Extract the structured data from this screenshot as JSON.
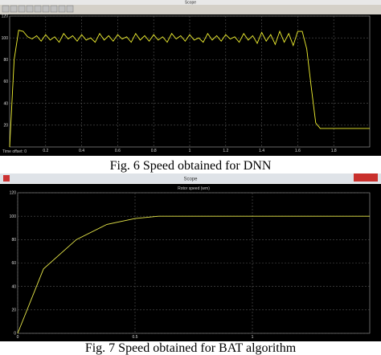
{
  "windows": [
    {
      "title": "Scope",
      "time_offset": "Time offset: 0",
      "caption": "Fig. 6 Speed obtained for DNN"
    },
    {
      "title": "Scope",
      "caption": "Fig. 7 Speed obtained for BAT algorithm"
    }
  ],
  "chart_data": [
    {
      "type": "line",
      "color": "#f2f230",
      "x": [
        0,
        0.025,
        0.05,
        0.075,
        0.1,
        0.125,
        0.15,
        0.175,
        0.2,
        0.225,
        0.25,
        0.275,
        0.3,
        0.325,
        0.35,
        0.375,
        0.4,
        0.425,
        0.45,
        0.475,
        0.5,
        0.525,
        0.55,
        0.575,
        0.6,
        0.625,
        0.65,
        0.675,
        0.7,
        0.725,
        0.75,
        0.775,
        0.8,
        0.825,
        0.85,
        0.875,
        0.9,
        0.925,
        0.95,
        0.975,
        1,
        1.025,
        1.05,
        1.075,
        1.1,
        1.125,
        1.15,
        1.175,
        1.2,
        1.225,
        1.25,
        1.275,
        1.3,
        1.325,
        1.35,
        1.375,
        1.4,
        1.425,
        1.45,
        1.475,
        1.5,
        1.525,
        1.55,
        1.575,
        1.6,
        1.625,
        1.65,
        1.675,
        1.7,
        1.725,
        1.75,
        1.775,
        1.8,
        1.825,
        1.85,
        1.875,
        1.9,
        1.925,
        1.95,
        1.975,
        2
      ],
      "values": [
        0,
        80,
        107,
        106,
        101,
        99,
        102,
        97,
        103,
        98,
        101,
        96,
        104,
        99,
        102,
        97,
        103,
        98,
        100,
        96,
        104,
        98,
        102,
        97,
        103,
        99,
        101,
        96,
        104,
        98,
        102,
        97,
        103,
        98,
        101,
        96,
        104,
        99,
        102,
        97,
        103,
        98,
        100,
        96,
        104,
        98,
        102,
        97,
        103,
        99,
        101,
        96,
        104,
        98,
        102,
        95,
        105,
        97,
        103,
        94,
        106,
        96,
        104,
        93,
        106,
        106,
        90,
        55,
        22,
        17,
        17,
        17,
        17,
        17,
        17,
        17,
        17,
        17,
        17,
        17,
        17
      ],
      "xlim": [
        0,
        2
      ],
      "xticks": [
        0.2,
        0.4,
        0.6,
        0.8,
        1,
        1.2,
        1.4,
        1.6,
        1.8
      ],
      "ylim": [
        0,
        120
      ],
      "yticks": [
        20,
        40,
        60,
        80,
        100,
        120
      ],
      "grid": true
    },
    {
      "type": "line",
      "color": "#e8e84a",
      "title": "Rotor speed (wm)",
      "x": [
        0,
        0.11,
        0.25,
        0.38,
        0.5,
        0.6,
        1.5
      ],
      "values": [
        0,
        55,
        80,
        93,
        98,
        100,
        100
      ],
      "xlim": [
        0,
        1.5
      ],
      "xticks": [
        0,
        0.5,
        1
      ],
      "ylim": [
        0,
        120
      ],
      "yticks": [
        0,
        20,
        40,
        60,
        80,
        100,
        120
      ],
      "grid": true
    }
  ]
}
